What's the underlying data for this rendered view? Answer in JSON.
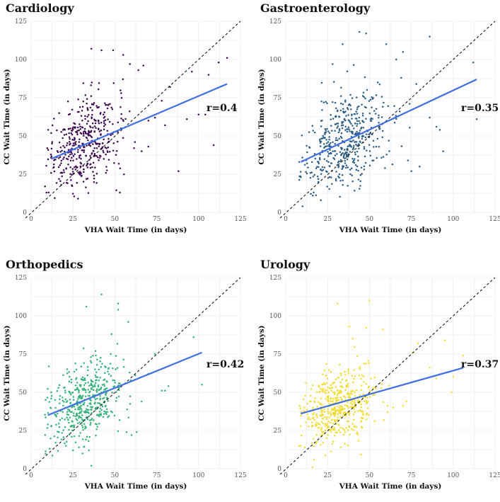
{
  "chart_data": [
    {
      "type": "scatter",
      "title": "Cardiology",
      "xlabel": "VHA Wait Time (in days)",
      "ylabel": "CC Wait Time (in days)",
      "xlim": [
        0,
        125
      ],
      "ylim": [
        0,
        125
      ],
      "xticks": [
        0,
        25,
        50,
        75,
        100,
        125
      ],
      "yticks": [
        0,
        25,
        50,
        75,
        100,
        125
      ],
      "annotation": "r=0.4",
      "point_color": "#3d0a4f",
      "fit_line": {
        "x": [
          12,
          117
        ],
        "y": [
          35,
          84
        ]
      },
      "reference_line": "y = x",
      "points": {
        "n": 420,
        "x_center": 32,
        "x_spread": 11,
        "slope": 0.47,
        "intercept": 29,
        "noise": 14,
        "extra": [
          [
            83,
            82
          ],
          [
            88,
            27
          ],
          [
            93,
            61
          ],
          [
            100,
            64
          ],
          [
            104,
            64
          ],
          [
            109,
            44
          ],
          [
            106,
            90
          ],
          [
            112,
            98
          ],
          [
            117,
            101
          ],
          [
            96,
            92
          ],
          [
            70,
            60
          ],
          [
            74,
            62
          ],
          [
            64,
            93
          ],
          [
            55,
            103
          ],
          [
            42,
            106
          ],
          [
            49,
            106
          ],
          [
            36,
            107
          ],
          [
            59,
            97
          ],
          [
            67,
            96
          ],
          [
            78,
            73
          ],
          [
            80,
            57
          ],
          [
            66,
            40
          ],
          [
            62,
            46
          ],
          [
            70,
            43
          ],
          [
            53,
            13
          ],
          [
            28,
            9
          ],
          [
            18,
            18
          ]
        ]
      }
    },
    {
      "type": "scatter",
      "title": "Gastroenterology",
      "xlabel": "VHA Wait Time (in days)",
      "ylabel": "CC Wait Time (in days)",
      "xlim": [
        0,
        125
      ],
      "ylim": [
        0,
        125
      ],
      "xticks": [
        0,
        25,
        50,
        75,
        100,
        125
      ],
      "yticks": [
        0,
        25,
        50,
        75,
        100,
        125
      ],
      "annotation": "r=0.35",
      "point_color": "#2c5e86",
      "fit_line": {
        "x": [
          9,
          114
        ],
        "y": [
          33,
          87
        ]
      },
      "reference_line": "y = x",
      "points": {
        "n": 460,
        "x_center": 36,
        "x_spread": 12,
        "slope": 0.5,
        "intercept": 29,
        "noise": 15,
        "extra": [
          [
            86,
            115
          ],
          [
            70,
            105
          ],
          [
            44,
            118
          ],
          [
            48,
            117
          ],
          [
            112,
            98
          ],
          [
            114,
            61
          ],
          [
            94,
            40
          ],
          [
            80,
            30
          ],
          [
            73,
            34
          ],
          [
            75,
            27
          ],
          [
            86,
            62
          ],
          [
            90,
            56
          ],
          [
            92,
            54
          ],
          [
            74,
            71
          ],
          [
            78,
            84
          ],
          [
            69,
            88
          ],
          [
            66,
            100
          ],
          [
            60,
            110
          ],
          [
            55,
            85
          ],
          [
            34,
            110
          ],
          [
            28,
            97
          ],
          [
            10,
            4
          ],
          [
            21,
            8
          ],
          [
            9,
            23
          ]
        ]
      }
    },
    {
      "type": "scatter",
      "title": "Orthopedics",
      "xlabel": "VHA Wait Time (in days)",
      "ylabel": "CC Wait Time (in days)",
      "xlim": [
        0,
        125
      ],
      "ylim": [
        0,
        125
      ],
      "xticks": [
        0,
        25,
        50,
        75,
        100,
        125
      ],
      "yticks": [
        0,
        25,
        50,
        75,
        100,
        125
      ],
      "annotation": "r=0.42",
      "point_color": "#34b27a",
      "fit_line": {
        "x": [
          10,
          102
        ],
        "y": [
          35,
          76
        ]
      },
      "reference_line": "y = x",
      "points": {
        "n": 460,
        "x_center": 32,
        "x_spread": 11,
        "slope": 0.45,
        "intercept": 29,
        "noise": 13,
        "extra": [
          [
            102,
            55
          ],
          [
            97,
            86
          ],
          [
            82,
            54
          ],
          [
            80,
            51
          ],
          [
            78,
            51
          ],
          [
            74,
            75
          ],
          [
            66,
            44
          ],
          [
            60,
            22
          ],
          [
            57,
            24
          ],
          [
            63,
            24
          ],
          [
            70,
            62
          ],
          [
            52,
            104
          ],
          [
            42,
            114
          ],
          [
            33,
            106
          ],
          [
            52,
            108
          ],
          [
            58,
            96
          ],
          [
            48,
            88
          ],
          [
            36,
            2
          ],
          [
            25,
            12
          ],
          [
            10,
            29
          ],
          [
            12,
            50
          ]
        ]
      }
    },
    {
      "type": "scatter",
      "title": "Urology",
      "xlabel": "VHA Wait Time (in days)",
      "ylabel": "CC Wait Time (in days)",
      "xlim": [
        0,
        125
      ],
      "ylim": [
        0,
        125
      ],
      "xticks": [
        0,
        25,
        50,
        75,
        100,
        125
      ],
      "yticks": [
        0,
        25,
        50,
        75,
        100,
        125
      ],
      "annotation": "r=0.37",
      "point_color": "#f2dc30",
      "fit_line": {
        "x": [
          9,
          106
        ],
        "y": [
          36,
          66
        ]
      },
      "reference_line": "y = x",
      "points": {
        "n": 460,
        "x_center": 32,
        "x_spread": 11,
        "slope": 0.33,
        "intercept": 31,
        "noise": 12,
        "extra": [
          [
            106,
            74
          ],
          [
            100,
            60
          ],
          [
            99,
            50
          ],
          [
            95,
            84
          ],
          [
            90,
            59
          ],
          [
            86,
            66
          ],
          [
            79,
            82
          ],
          [
            76,
            76
          ],
          [
            72,
            44
          ],
          [
            70,
            41
          ],
          [
            64,
            40
          ],
          [
            61,
            37
          ],
          [
            58,
            91
          ],
          [
            48,
            92
          ],
          [
            50,
            110
          ],
          [
            38,
            93
          ],
          [
            31,
            108
          ],
          [
            40,
            85
          ],
          [
            33,
            14
          ],
          [
            16,
            1
          ],
          [
            17,
            6
          ],
          [
            9,
            15
          ],
          [
            11,
            40
          ]
        ]
      }
    }
  ]
}
